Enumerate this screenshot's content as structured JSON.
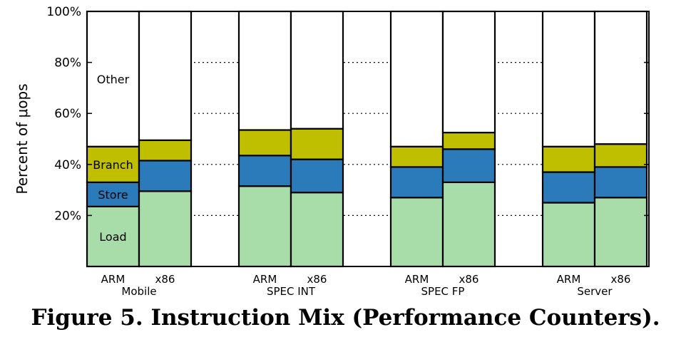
{
  "caption": "Figure 5. Instruction Mix (Performance Counters).",
  "chart_data": {
    "type": "bar",
    "stacked": true,
    "ylabel": "Percent of μops",
    "ylim": [
      0,
      100
    ],
    "yticks": [
      "20%",
      "40%",
      "60%",
      "80%",
      "100%"
    ],
    "grid": "horizontal dotted",
    "groups": [
      "Mobile",
      "SPEC INT",
      "SPEC FP",
      "Server"
    ],
    "bars": [
      "ARM",
      "x86",
      "ARM",
      "x86",
      "ARM",
      "x86",
      "ARM",
      "x86"
    ],
    "series": [
      {
        "name": "Load",
        "color": "#a8dca8",
        "values": [
          23.5,
          29.5,
          31.5,
          29,
          27,
          33,
          25,
          27
        ]
      },
      {
        "name": "Store",
        "color": "#2b7bba",
        "values": [
          9.5,
          12,
          12,
          13,
          12,
          13,
          12,
          12
        ]
      },
      {
        "name": "Branch",
        "color": "#bfbf00",
        "values": [
          14,
          8,
          10,
          12,
          8,
          6.5,
          10,
          9
        ]
      },
      {
        "name": "Other",
        "color": "#ffffff",
        "values": [
          53,
          50.5,
          46.5,
          46,
          53,
          47.5,
          53,
          52
        ]
      }
    ]
  }
}
